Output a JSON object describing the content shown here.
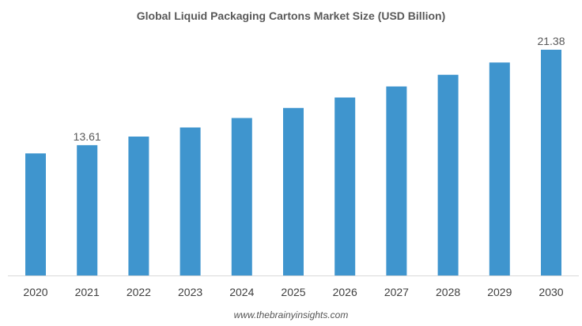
{
  "chart_data": {
    "type": "bar",
    "title": "Global Liquid Packaging Cartons Market Size (USD Billion)",
    "categories": [
      "2020",
      "2021",
      "2022",
      "2023",
      "2024",
      "2025",
      "2026",
      "2027",
      "2028",
      "2029",
      "2030"
    ],
    "values": [
      12.94,
      13.61,
      14.31,
      15.05,
      15.82,
      16.64,
      17.49,
      18.39,
      19.34,
      20.34,
      21.38
    ],
    "data_labels": {
      "2021": "13.61",
      "2030": "21.38"
    },
    "xlabel": "",
    "ylabel": "",
    "ylim": [
      3,
      22.5
    ],
    "grid": false,
    "bar_color": "#3f95ce"
  },
  "watermark": "www.thebrainyinsights.com"
}
